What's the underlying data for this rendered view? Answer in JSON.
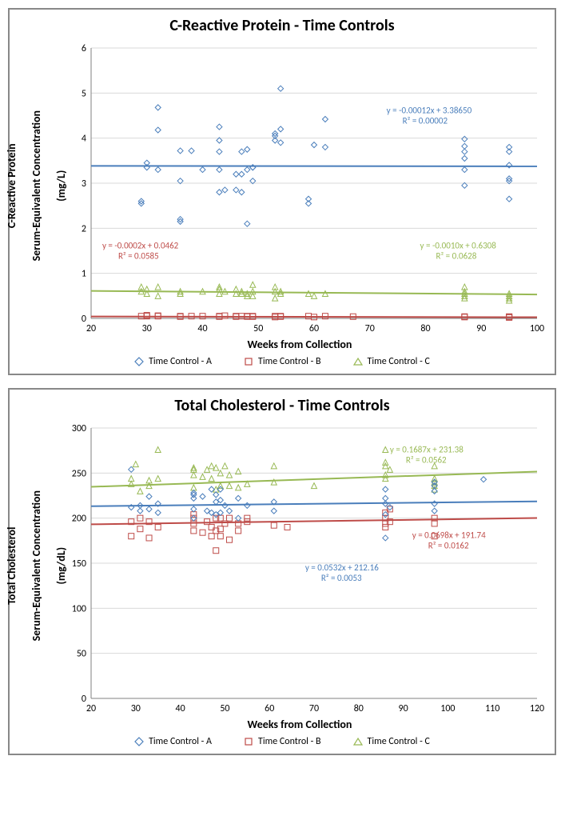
{
  "colors": {
    "series_a": "#4a7ebb",
    "series_b": "#be4b48",
    "series_c": "#98b954",
    "grid": "#d9d9d9",
    "axis": "#808080",
    "text": "#000000"
  },
  "legend_labels": {
    "a": "Time Control - A",
    "b": "Time Control - B",
    "c": "Time Control - C"
  },
  "chart1": {
    "title": "C-Reactive Protein - Time Controls",
    "ylabel_line1": "C-Reactive Protein",
    "ylabel_line2": "Serum-Equivalent Concentration",
    "ylabel_line3": "(mg/L)",
    "xlabel": "Weeks from Collection",
    "xlim": [
      20,
      100
    ],
    "ylim": [
      0,
      6
    ],
    "xtick_step": 10,
    "ytick_step": 1,
    "annotations": {
      "a_eq": "y = -0.00012x + 3.38650",
      "a_r2": "R² = 0.00002",
      "a_pos": [
        73,
        4.55
      ],
      "b_eq": "y = -0.0002x + 0.0462",
      "b_r2": "R² = 0.0585",
      "b_pos": [
        22,
        1.55
      ],
      "c_eq": "y = -0.0010x + 0.6308",
      "c_r2": "R² = 0.0628",
      "c_pos": [
        79,
        1.55
      ]
    },
    "trend": {
      "a": {
        "m": -0.00012,
        "b": 3.3865
      },
      "b": {
        "m": -0.0002,
        "b": 0.0462
      },
      "c": {
        "m": -0.001,
        "b": 0.6308
      }
    },
    "series_a": [
      [
        29,
        2.55
      ],
      [
        29,
        2.6
      ],
      [
        30,
        3.35
      ],
      [
        30,
        3.45
      ],
      [
        32,
        4.18
      ],
      [
        32,
        4.68
      ],
      [
        32,
        3.3
      ],
      [
        36,
        3.05
      ],
      [
        36,
        2.2
      ],
      [
        36,
        3.72
      ],
      [
        36,
        2.15
      ],
      [
        38,
        3.72
      ],
      [
        40,
        3.3
      ],
      [
        43,
        2.8
      ],
      [
        43,
        3.7
      ],
      [
        43,
        3.95
      ],
      [
        43,
        4.25
      ],
      [
        43,
        3.3
      ],
      [
        44,
        2.85
      ],
      [
        46,
        2.85
      ],
      [
        46,
        3.2
      ],
      [
        47,
        2.8
      ],
      [
        47,
        3.2
      ],
      [
        47,
        3.7
      ],
      [
        48,
        2.1
      ],
      [
        48,
        3.3
      ],
      [
        48,
        3.75
      ],
      [
        49,
        3.05
      ],
      [
        49,
        3.35
      ],
      [
        49,
        3.35
      ],
      [
        53,
        3.95
      ],
      [
        53,
        4.1
      ],
      [
        53,
        4.05
      ],
      [
        54,
        4.2
      ],
      [
        54,
        3.9
      ],
      [
        54,
        5.1
      ],
      [
        59,
        2.55
      ],
      [
        59,
        2.65
      ],
      [
        60,
        3.85
      ],
      [
        62,
        3.8
      ],
      [
        62,
        4.42
      ],
      [
        87,
        3.55
      ],
      [
        87,
        3.7
      ],
      [
        87,
        3.98
      ],
      [
        87,
        3.82
      ],
      [
        87,
        2.95
      ],
      [
        87,
        3.3
      ],
      [
        95,
        2.65
      ],
      [
        95,
        3.05
      ],
      [
        95,
        3.1
      ],
      [
        95,
        3.4
      ],
      [
        95,
        3.7
      ],
      [
        95,
        3.8
      ]
    ],
    "series_b": [
      [
        29,
        0.05
      ],
      [
        30,
        0.05
      ],
      [
        30,
        0.07
      ],
      [
        32,
        0.06
      ],
      [
        32,
        0.05
      ],
      [
        36,
        0.04
      ],
      [
        36,
        0.05
      ],
      [
        38,
        0.05
      ],
      [
        40,
        0.05
      ],
      [
        43,
        0.05
      ],
      [
        43,
        0.04
      ],
      [
        44,
        0.06
      ],
      [
        46,
        0.05
      ],
      [
        46,
        0.04
      ],
      [
        47,
        0.05
      ],
      [
        48,
        0.04
      ],
      [
        48,
        0.05
      ],
      [
        49,
        0.05
      ],
      [
        49,
        0.04
      ],
      [
        53,
        0.05
      ],
      [
        53,
        0.03
      ],
      [
        54,
        0.05
      ],
      [
        54,
        0.04
      ],
      [
        59,
        0.05
      ],
      [
        60,
        0.03
      ],
      [
        62,
        0.05
      ],
      [
        67,
        0.04
      ],
      [
        87,
        0.03
      ],
      [
        87,
        0.04
      ],
      [
        95,
        0.03
      ],
      [
        95,
        0.02
      ],
      [
        95,
        0.04
      ]
    ],
    "series_c": [
      [
        29,
        0.6
      ],
      [
        29,
        0.7
      ],
      [
        30,
        0.55
      ],
      [
        30,
        0.65
      ],
      [
        32,
        0.7
      ],
      [
        32,
        0.5
      ],
      [
        36,
        0.6
      ],
      [
        36,
        0.55
      ],
      [
        40,
        0.6
      ],
      [
        43,
        0.65
      ],
      [
        43,
        0.7
      ],
      [
        43,
        0.55
      ],
      [
        44,
        0.6
      ],
      [
        46,
        0.65
      ],
      [
        46,
        0.55
      ],
      [
        47,
        0.55
      ],
      [
        47,
        0.6
      ],
      [
        48,
        0.5
      ],
      [
        48,
        0.55
      ],
      [
        49,
        0.5
      ],
      [
        49,
        0.6
      ],
      [
        49,
        0.75
      ],
      [
        53,
        0.6
      ],
      [
        53,
        0.7
      ],
      [
        53,
        0.45
      ],
      [
        54,
        0.55
      ],
      [
        54,
        0.6
      ],
      [
        59,
        0.55
      ],
      [
        60,
        0.5
      ],
      [
        62,
        0.55
      ],
      [
        87,
        0.45
      ],
      [
        87,
        0.5
      ],
      [
        87,
        0.55
      ],
      [
        87,
        0.6
      ],
      [
        87,
        0.7
      ],
      [
        95,
        0.45
      ],
      [
        95,
        0.5
      ],
      [
        95,
        0.55
      ],
      [
        95,
        0.4
      ]
    ]
  },
  "chart2": {
    "title": "Total Cholesterol - Time Controls",
    "ylabel_line1": "Total Cholesterol",
    "ylabel_line2": "Serum-Equivalent Concentration",
    "ylabel_line3": "(mg/dL)",
    "xlabel": "Weeks from Collection",
    "xlim": [
      20,
      120
    ],
    "ylim": [
      0,
      300
    ],
    "xtick_step": 10,
    "ytick_step": 50,
    "annotations": {
      "a_eq": "y = 0.0532x + 212.16",
      "a_r2": "R² = 0.0053",
      "a_pos": [
        68,
        142
      ],
      "b_eq": "y = 0.0698x + 191.74",
      "b_r2": "R² = 0.0162",
      "b_pos": [
        92,
        178
      ],
      "c_eq": "y = 0.1687x + 231.38",
      "c_r2": "R² = 0.0562",
      "c_pos": [
        87,
        273
      ]
    },
    "trend": {
      "a": {
        "m": 0.0532,
        "b": 212.16
      },
      "b": {
        "m": 0.0698,
        "b": 191.74
      },
      "c": {
        "m": 0.1687,
        "b": 231.38
      }
    },
    "series_a": [
      [
        29,
        254
      ],
      [
        29,
        212
      ],
      [
        31,
        214
      ],
      [
        31,
        208
      ],
      [
        33,
        224
      ],
      [
        33,
        210
      ],
      [
        35,
        216
      ],
      [
        35,
        206
      ],
      [
        43,
        222
      ],
      [
        43,
        226
      ],
      [
        43,
        228
      ],
      [
        43,
        210
      ],
      [
        43,
        200
      ],
      [
        45,
        224
      ],
      [
        46,
        208
      ],
      [
        47,
        232
      ],
      [
        47,
        206
      ],
      [
        48,
        226
      ],
      [
        48,
        218
      ],
      [
        48,
        204
      ],
      [
        49,
        220
      ],
      [
        49,
        206
      ],
      [
        49,
        232
      ],
      [
        50,
        214
      ],
      [
        51,
        208
      ],
      [
        53,
        222
      ],
      [
        53,
        200
      ],
      [
        55,
        214
      ],
      [
        61,
        208
      ],
      [
        61,
        218
      ],
      [
        86,
        222
      ],
      [
        86,
        232
      ],
      [
        86,
        216
      ],
      [
        86,
        204
      ],
      [
        86,
        178
      ],
      [
        87,
        212
      ],
      [
        97,
        216
      ],
      [
        97,
        208
      ],
      [
        97,
        236
      ],
      [
        97,
        240
      ],
      [
        97,
        230
      ],
      [
        108,
        243
      ]
    ],
    "series_b": [
      [
        29,
        196
      ],
      [
        29,
        180
      ],
      [
        31,
        188
      ],
      [
        31,
        200
      ],
      [
        33,
        196
      ],
      [
        33,
        178
      ],
      [
        35,
        190
      ],
      [
        43,
        194
      ],
      [
        43,
        200
      ],
      [
        43,
        186
      ],
      [
        43,
        204
      ],
      [
        45,
        184
      ],
      [
        46,
        196
      ],
      [
        47,
        190
      ],
      [
        47,
        180
      ],
      [
        48,
        200
      ],
      [
        48,
        164
      ],
      [
        48,
        186
      ],
      [
        49,
        188
      ],
      [
        49,
        200
      ],
      [
        49,
        180
      ],
      [
        50,
        194
      ],
      [
        51,
        200
      ],
      [
        51,
        176
      ],
      [
        53,
        194
      ],
      [
        53,
        186
      ],
      [
        55,
        196
      ],
      [
        55,
        200
      ],
      [
        61,
        192
      ],
      [
        64,
        190
      ],
      [
        86,
        206
      ],
      [
        86,
        190
      ],
      [
        86,
        194
      ],
      [
        86,
        200
      ],
      [
        87,
        210
      ],
      [
        87,
        196
      ],
      [
        97,
        200
      ],
      [
        97,
        180
      ],
      [
        97,
        194
      ]
    ],
    "series_c": [
      [
        29,
        238
      ],
      [
        29,
        244
      ],
      [
        30,
        260
      ],
      [
        31,
        230
      ],
      [
        33,
        242
      ],
      [
        33,
        236
      ],
      [
        35,
        276
      ],
      [
        35,
        244
      ],
      [
        43,
        248
      ],
      [
        43,
        256
      ],
      [
        43,
        234
      ],
      [
        43,
        254
      ],
      [
        45,
        246
      ],
      [
        46,
        254
      ],
      [
        47,
        244
      ],
      [
        47,
        258
      ],
      [
        48,
        232
      ],
      [
        48,
        256
      ],
      [
        49,
        250
      ],
      [
        49,
        236
      ],
      [
        50,
        258
      ],
      [
        51,
        248
      ],
      [
        51,
        236
      ],
      [
        53,
        234
      ],
      [
        53,
        252
      ],
      [
        55,
        238
      ],
      [
        61,
        258
      ],
      [
        61,
        240
      ],
      [
        70,
        236
      ],
      [
        86,
        276
      ],
      [
        86,
        258
      ],
      [
        86,
        248
      ],
      [
        86,
        262
      ],
      [
        86,
        244
      ],
      [
        87,
        254
      ],
      [
        97,
        232
      ],
      [
        97,
        240
      ],
      [
        97,
        258
      ],
      [
        97,
        244
      ],
      [
        97,
        236
      ]
    ]
  }
}
